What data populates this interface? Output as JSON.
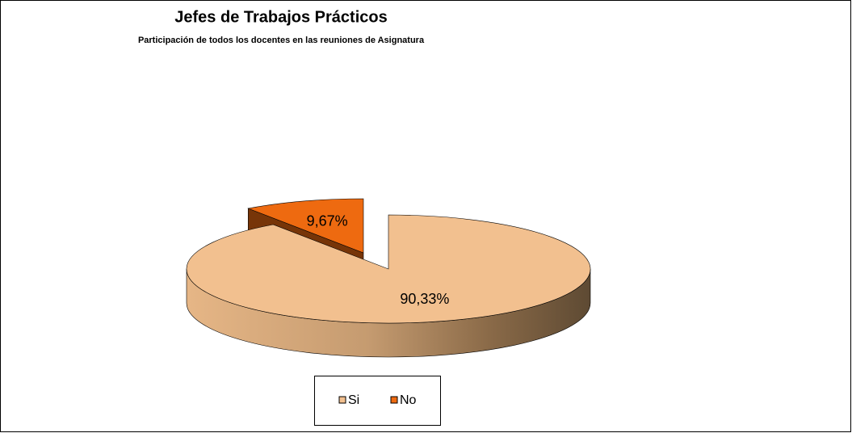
{
  "chart_data": {
    "type": "pie",
    "title": "Jefes de Trabajos Prácticos",
    "subtitle": "Participación de todos los docentes en las reuniones de Asignatura",
    "categories": [
      "Si",
      "No"
    ],
    "values": [
      90.33,
      9.67
    ],
    "value_labels": [
      "90,33%",
      "9,67%"
    ],
    "colors": [
      "#f2c08f",
      "#ee6a10"
    ],
    "legend": "bottom"
  }
}
